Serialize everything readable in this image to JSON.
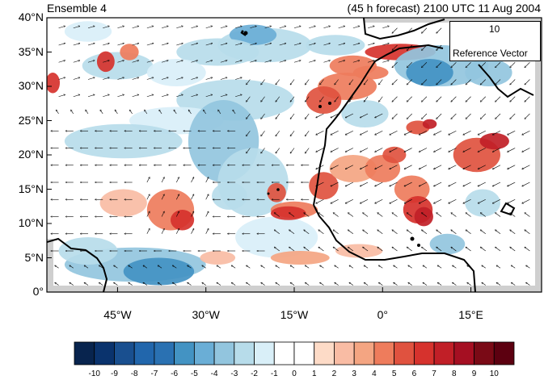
{
  "title_left": "Ensemble 4",
  "title_right": "(45 h forecast) 2100 UTC 11 Aug 2004",
  "lat_labels": [
    "40°N",
    "35°N",
    "30°N",
    "25°N",
    "20°N",
    "15°N",
    "10°N",
    "5°N",
    "0°"
  ],
  "lon_labels": [
    "45°W",
    "30°W",
    "15°W",
    "0°",
    "15°E"
  ],
  "reference_vector": {
    "magnitude": "10",
    "label": "Reference Vector"
  },
  "colorbar": {
    "ticks": [
      "-10",
      "-9",
      "-8",
      "-7",
      "-6",
      "-5",
      "-4",
      "-3",
      "-2",
      "-1",
      "0",
      "1",
      "2",
      "3",
      "4",
      "5",
      "6",
      "7",
      "8",
      "9",
      "10"
    ],
    "colors": [
      "#08244e",
      "#0a336d",
      "#194f8f",
      "#2166ac",
      "#2a71b2",
      "#4393c3",
      "#6aaed6",
      "#92c5de",
      "#b7dcea",
      "#d9eff8",
      "#ffffff",
      "#ffffff",
      "#fddbc7",
      "#f9bca4",
      "#f4a582",
      "#ee7c5c",
      "#e0523f",
      "#d6322d",
      "#c11f27",
      "#a50f22",
      "#7a0a16",
      "#5c0010"
    ]
  },
  "map_domain": {
    "lon_min": -57,
    "lon_max": 27,
    "lat_min": 0,
    "lat_max": 40
  }
}
